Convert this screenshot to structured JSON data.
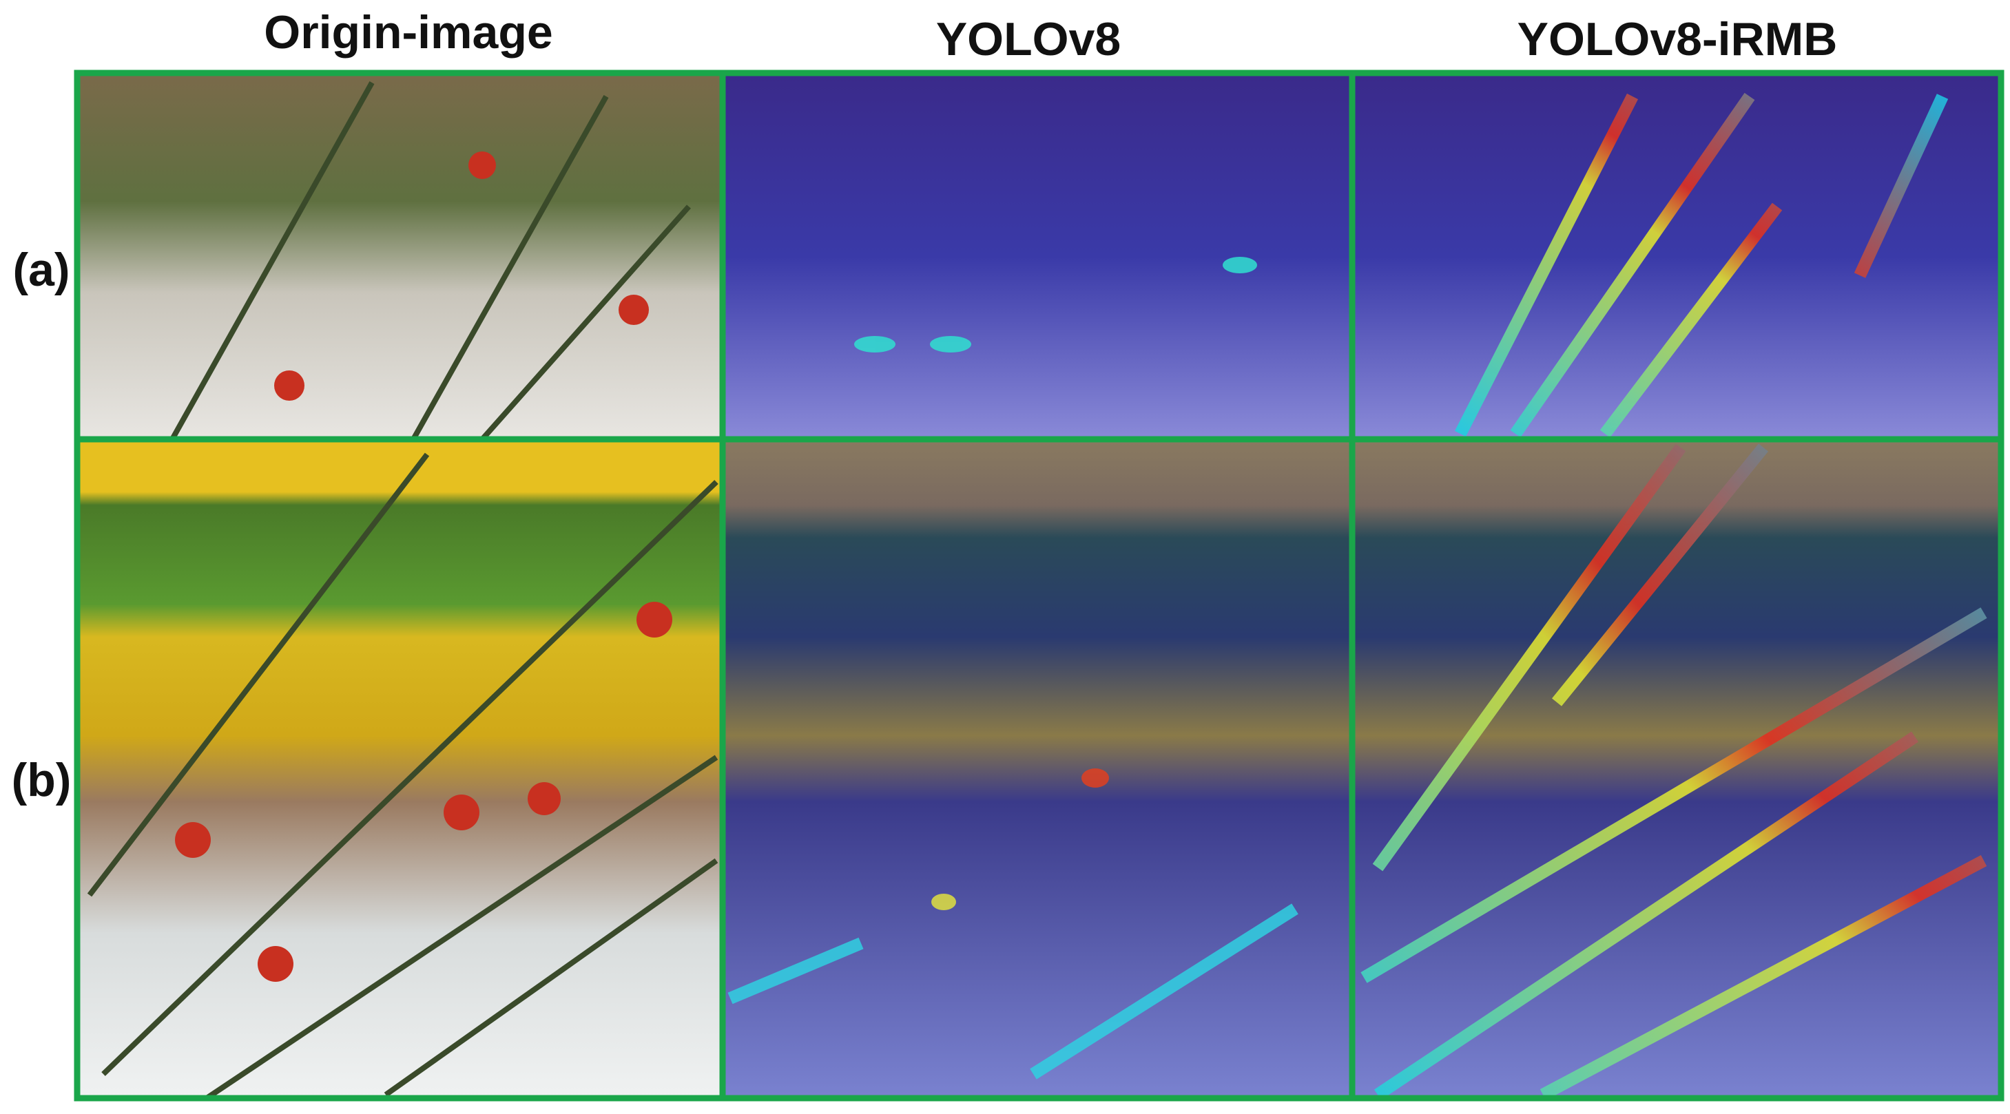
{
  "columns": [
    "Origin-image",
    "YOLOv8",
    "YOLOv8-iRMB"
  ],
  "rows": [
    "(a)",
    "(b)"
  ]
}
